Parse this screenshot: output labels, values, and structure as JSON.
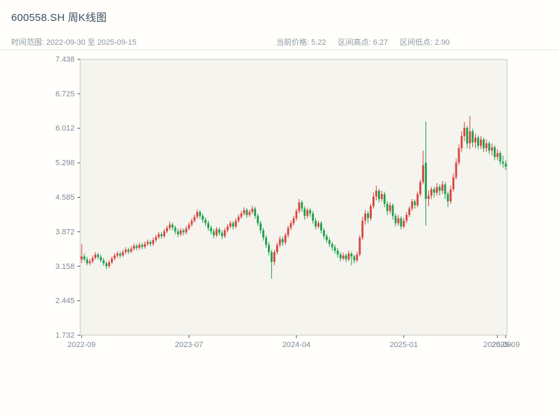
{
  "header": {
    "title": "600558.SH 周K线图",
    "subtitle_left": "时间范围: 2022-09-30 至 2025-09-15",
    "stats": {
      "current": "当前价格: 5.22",
      "high": "区间高点: 6.27",
      "low": "区间低点: 2.90"
    }
  },
  "chart_data": {
    "type": "candlestick",
    "symbol": "600558.SH",
    "interval": "weekly",
    "date_range": [
      "2022-09-30",
      "2025-09-15"
    ],
    "current_price": 5.22,
    "range_high": 6.27,
    "range_low": 2.9,
    "ylim": [
      1.732,
      7.438
    ],
    "y_ticks": [
      7.438,
      6.725,
      6.012,
      5.298,
      4.585,
      3.872,
      3.158,
      2.445,
      1.732
    ],
    "x_ticks": [
      {
        "index": 0,
        "label": "2022-09"
      },
      {
        "index": 39,
        "label": "2023-07"
      },
      {
        "index": 78,
        "label": "2024-04"
      },
      {
        "index": 117,
        "label": "2025-01"
      },
      {
        "index": 151,
        "label": "2025-09"
      },
      {
        "index": 154,
        "label": "2025-09"
      }
    ],
    "grid": false,
    "legend": false,
    "up_color": "#d9443f",
    "down_color": "#1ca04c",
    "plot_bg": "#f5f4ee",
    "border_color": "#c8c8c2",
    "tick_label_color": "#7d8a9c",
    "candles": [
      [
        3.3,
        3.62,
        3.22,
        3.36
      ],
      [
        3.36,
        3.42,
        3.26,
        3.3
      ],
      [
        3.3,
        3.35,
        3.18,
        3.22
      ],
      [
        3.22,
        3.31,
        3.18,
        3.26
      ],
      [
        3.26,
        3.38,
        3.22,
        3.33
      ],
      [
        3.33,
        3.45,
        3.3,
        3.4
      ],
      [
        3.4,
        3.44,
        3.3,
        3.35
      ],
      [
        3.35,
        3.4,
        3.24,
        3.28
      ],
      [
        3.28,
        3.33,
        3.17,
        3.22
      ],
      [
        3.22,
        3.26,
        3.1,
        3.16
      ],
      [
        3.16,
        3.28,
        3.12,
        3.24
      ],
      [
        3.24,
        3.36,
        3.2,
        3.32
      ],
      [
        3.32,
        3.43,
        3.28,
        3.38
      ],
      [
        3.38,
        3.47,
        3.33,
        3.42
      ],
      [
        3.42,
        3.46,
        3.33,
        3.38
      ],
      [
        3.38,
        3.5,
        3.35,
        3.45
      ],
      [
        3.45,
        3.55,
        3.41,
        3.5
      ],
      [
        3.5,
        3.54,
        3.41,
        3.46
      ],
      [
        3.46,
        3.57,
        3.43,
        3.52
      ],
      [
        3.52,
        3.63,
        3.48,
        3.58
      ],
      [
        3.58,
        3.62,
        3.49,
        3.54
      ],
      [
        3.54,
        3.65,
        3.5,
        3.6
      ],
      [
        3.6,
        3.64,
        3.51,
        3.56
      ],
      [
        3.56,
        3.67,
        3.52,
        3.62
      ],
      [
        3.62,
        3.71,
        3.58,
        3.66
      ],
      [
        3.66,
        3.7,
        3.57,
        3.62
      ],
      [
        3.62,
        3.75,
        3.58,
        3.7
      ],
      [
        3.7,
        3.81,
        3.66,
        3.76
      ],
      [
        3.76,
        3.87,
        3.72,
        3.82
      ],
      [
        3.82,
        3.86,
        3.73,
        3.78
      ],
      [
        3.78,
        3.93,
        3.74,
        3.88
      ],
      [
        3.88,
        4.0,
        3.84,
        3.95
      ],
      [
        3.95,
        4.08,
        3.91,
        4.02
      ],
      [
        4.02,
        4.06,
        3.9,
        3.96
      ],
      [
        3.96,
        4.0,
        3.82,
        3.88
      ],
      [
        3.88,
        3.93,
        3.76,
        3.82
      ],
      [
        3.82,
        3.95,
        3.78,
        3.9
      ],
      [
        3.9,
        3.94,
        3.8,
        3.86
      ],
      [
        3.86,
        3.99,
        3.82,
        3.94
      ],
      [
        3.94,
        4.07,
        3.9,
        4.02
      ],
      [
        4.02,
        4.15,
        3.98,
        4.1
      ],
      [
        4.1,
        4.23,
        4.06,
        4.18
      ],
      [
        4.18,
        4.33,
        4.14,
        4.28
      ],
      [
        4.28,
        4.32,
        4.14,
        4.2
      ],
      [
        4.2,
        4.25,
        4.06,
        4.12
      ],
      [
        4.12,
        4.17,
        3.99,
        4.05
      ],
      [
        4.05,
        4.1,
        3.89,
        3.95
      ],
      [
        3.95,
        4.0,
        3.82,
        3.88
      ],
      [
        3.88,
        3.93,
        3.74,
        3.8
      ],
      [
        3.8,
        3.97,
        3.76,
        3.92
      ],
      [
        3.92,
        3.96,
        3.79,
        3.85
      ],
      [
        3.85,
        3.9,
        3.72,
        3.78
      ],
      [
        3.78,
        3.95,
        3.74,
        3.9
      ],
      [
        3.9,
        4.03,
        3.86,
        3.98
      ],
      [
        3.98,
        4.1,
        3.94,
        4.05
      ],
      [
        4.05,
        4.09,
        3.92,
        3.98
      ],
      [
        3.98,
        4.15,
        3.94,
        4.1
      ],
      [
        4.1,
        4.23,
        4.06,
        4.18
      ],
      [
        4.18,
        4.3,
        4.14,
        4.25
      ],
      [
        4.25,
        4.38,
        4.21,
        4.32
      ],
      [
        4.32,
        4.36,
        4.16,
        4.22
      ],
      [
        4.22,
        4.33,
        4.18,
        4.28
      ],
      [
        4.28,
        4.41,
        4.24,
        4.35
      ],
      [
        4.35,
        4.39,
        4.14,
        4.2
      ],
      [
        4.2,
        4.25,
        3.99,
        4.05
      ],
      [
        4.05,
        4.1,
        3.84,
        3.9
      ],
      [
        3.9,
        3.95,
        3.69,
        3.75
      ],
      [
        3.75,
        3.8,
        3.54,
        3.6
      ],
      [
        3.6,
        3.66,
        3.38,
        3.45
      ],
      [
        3.45,
        3.5,
        2.9,
        3.25
      ],
      [
        3.25,
        3.5,
        3.18,
        3.45
      ],
      [
        3.45,
        3.65,
        3.4,
        3.6
      ],
      [
        3.6,
        3.78,
        3.55,
        3.72
      ],
      [
        3.72,
        3.77,
        3.58,
        3.65
      ],
      [
        3.65,
        3.85,
        3.6,
        3.8
      ],
      [
        3.8,
        4.0,
        3.75,
        3.95
      ],
      [
        3.95,
        4.1,
        3.9,
        4.05
      ],
      [
        4.05,
        4.2,
        4.0,
        4.15
      ],
      [
        4.15,
        4.35,
        4.1,
        4.3
      ],
      [
        4.3,
        4.55,
        4.25,
        4.48
      ],
      [
        4.48,
        4.52,
        4.28,
        4.35
      ],
      [
        4.35,
        4.4,
        4.12,
        4.2
      ],
      [
        4.2,
        4.37,
        4.15,
        4.32
      ],
      [
        4.32,
        4.36,
        4.18,
        4.25
      ],
      [
        4.25,
        4.3,
        4.04,
        4.1
      ],
      [
        4.1,
        4.15,
        3.92,
        3.98
      ],
      [
        3.98,
        4.1,
        3.94,
        4.05
      ],
      [
        4.05,
        4.09,
        3.84,
        3.9
      ],
      [
        3.9,
        3.95,
        3.72,
        3.78
      ],
      [
        3.78,
        3.83,
        3.64,
        3.7
      ],
      [
        3.7,
        3.75,
        3.56,
        3.62
      ],
      [
        3.62,
        3.66,
        3.48,
        3.55
      ],
      [
        3.55,
        3.6,
        3.42,
        3.48
      ],
      [
        3.48,
        3.53,
        3.34,
        3.4
      ],
      [
        3.4,
        3.45,
        3.26,
        3.32
      ],
      [
        3.32,
        3.44,
        3.28,
        3.38
      ],
      [
        3.38,
        3.42,
        3.24,
        3.3
      ],
      [
        3.3,
        3.48,
        3.26,
        3.42
      ],
      [
        3.42,
        3.46,
        3.18,
        3.36
      ],
      [
        3.36,
        3.4,
        3.22,
        3.28
      ],
      [
        3.28,
        3.46,
        3.24,
        3.4
      ],
      [
        3.4,
        3.8,
        3.36,
        3.75
      ],
      [
        3.75,
        4.18,
        3.7,
        4.1
      ],
      [
        4.1,
        4.32,
        4.02,
        4.25
      ],
      [
        4.25,
        4.3,
        4.05,
        4.15
      ],
      [
        4.15,
        4.45,
        4.1,
        4.4
      ],
      [
        4.4,
        4.68,
        4.35,
        4.6
      ],
      [
        4.6,
        4.82,
        4.52,
        4.72
      ],
      [
        4.72,
        4.76,
        4.48,
        4.55
      ],
      [
        4.55,
        4.72,
        4.5,
        4.65
      ],
      [
        4.65,
        4.7,
        4.38,
        4.45
      ],
      [
        4.45,
        4.5,
        4.22,
        4.3
      ],
      [
        4.3,
        4.48,
        4.25,
        4.42
      ],
      [
        4.42,
        4.46,
        4.12,
        4.2
      ],
      [
        4.2,
        4.25,
        3.98,
        4.05
      ],
      [
        4.05,
        4.22,
        4.0,
        4.15
      ],
      [
        4.15,
        4.19,
        3.92,
        3.98
      ],
      [
        3.98,
        4.16,
        3.94,
        4.1
      ],
      [
        4.1,
        4.28,
        4.05,
        4.22
      ],
      [
        4.22,
        4.4,
        4.17,
        4.35
      ],
      [
        4.35,
        4.55,
        4.3,
        4.5
      ],
      [
        4.5,
        4.54,
        4.35,
        4.42
      ],
      [
        4.42,
        4.7,
        4.38,
        4.65
      ],
      [
        4.65,
        4.95,
        4.6,
        4.9
      ],
      [
        4.9,
        5.55,
        4.85,
        5.25
      ],
      [
        5.3,
        6.15,
        4.0,
        4.55
      ],
      [
        4.55,
        4.72,
        4.4,
        4.62
      ],
      [
        4.62,
        4.8,
        4.55,
        4.75
      ],
      [
        4.75,
        4.8,
        4.58,
        4.68
      ],
      [
        4.68,
        4.88,
        4.62,
        4.8
      ],
      [
        4.8,
        4.85,
        4.62,
        4.72
      ],
      [
        4.72,
        4.92,
        4.66,
        4.85
      ],
      [
        4.85,
        4.9,
        4.55,
        4.65
      ],
      [
        4.65,
        4.7,
        4.38,
        4.5
      ],
      [
        4.5,
        4.82,
        4.45,
        4.75
      ],
      [
        4.75,
        5.08,
        4.7,
        5.0
      ],
      [
        5.0,
        5.38,
        4.95,
        5.3
      ],
      [
        5.3,
        5.68,
        5.25,
        5.6
      ],
      [
        5.6,
        5.95,
        5.52,
        5.85
      ],
      [
        5.85,
        6.14,
        5.75,
        6.02
      ],
      [
        6.02,
        6.06,
        5.6,
        5.7
      ],
      [
        5.7,
        6.27,
        5.58,
        5.95
      ],
      [
        5.95,
        6.0,
        5.62,
        5.72
      ],
      [
        5.72,
        5.9,
        5.6,
        5.82
      ],
      [
        5.82,
        5.86,
        5.58,
        5.65
      ],
      [
        5.65,
        5.85,
        5.58,
        5.78
      ],
      [
        5.78,
        5.82,
        5.52,
        5.6
      ],
      [
        5.6,
        5.78,
        5.52,
        5.7
      ],
      [
        5.7,
        5.74,
        5.48,
        5.55
      ],
      [
        5.55,
        5.7,
        5.45,
        5.62
      ],
      [
        5.62,
        5.66,
        5.35,
        5.42
      ],
      [
        5.42,
        5.58,
        5.35,
        5.5
      ],
      [
        5.5,
        5.54,
        5.25,
        5.32
      ],
      [
        5.32,
        5.45,
        5.2,
        5.28
      ],
      [
        5.28,
        5.35,
        5.15,
        5.22
      ]
    ]
  }
}
